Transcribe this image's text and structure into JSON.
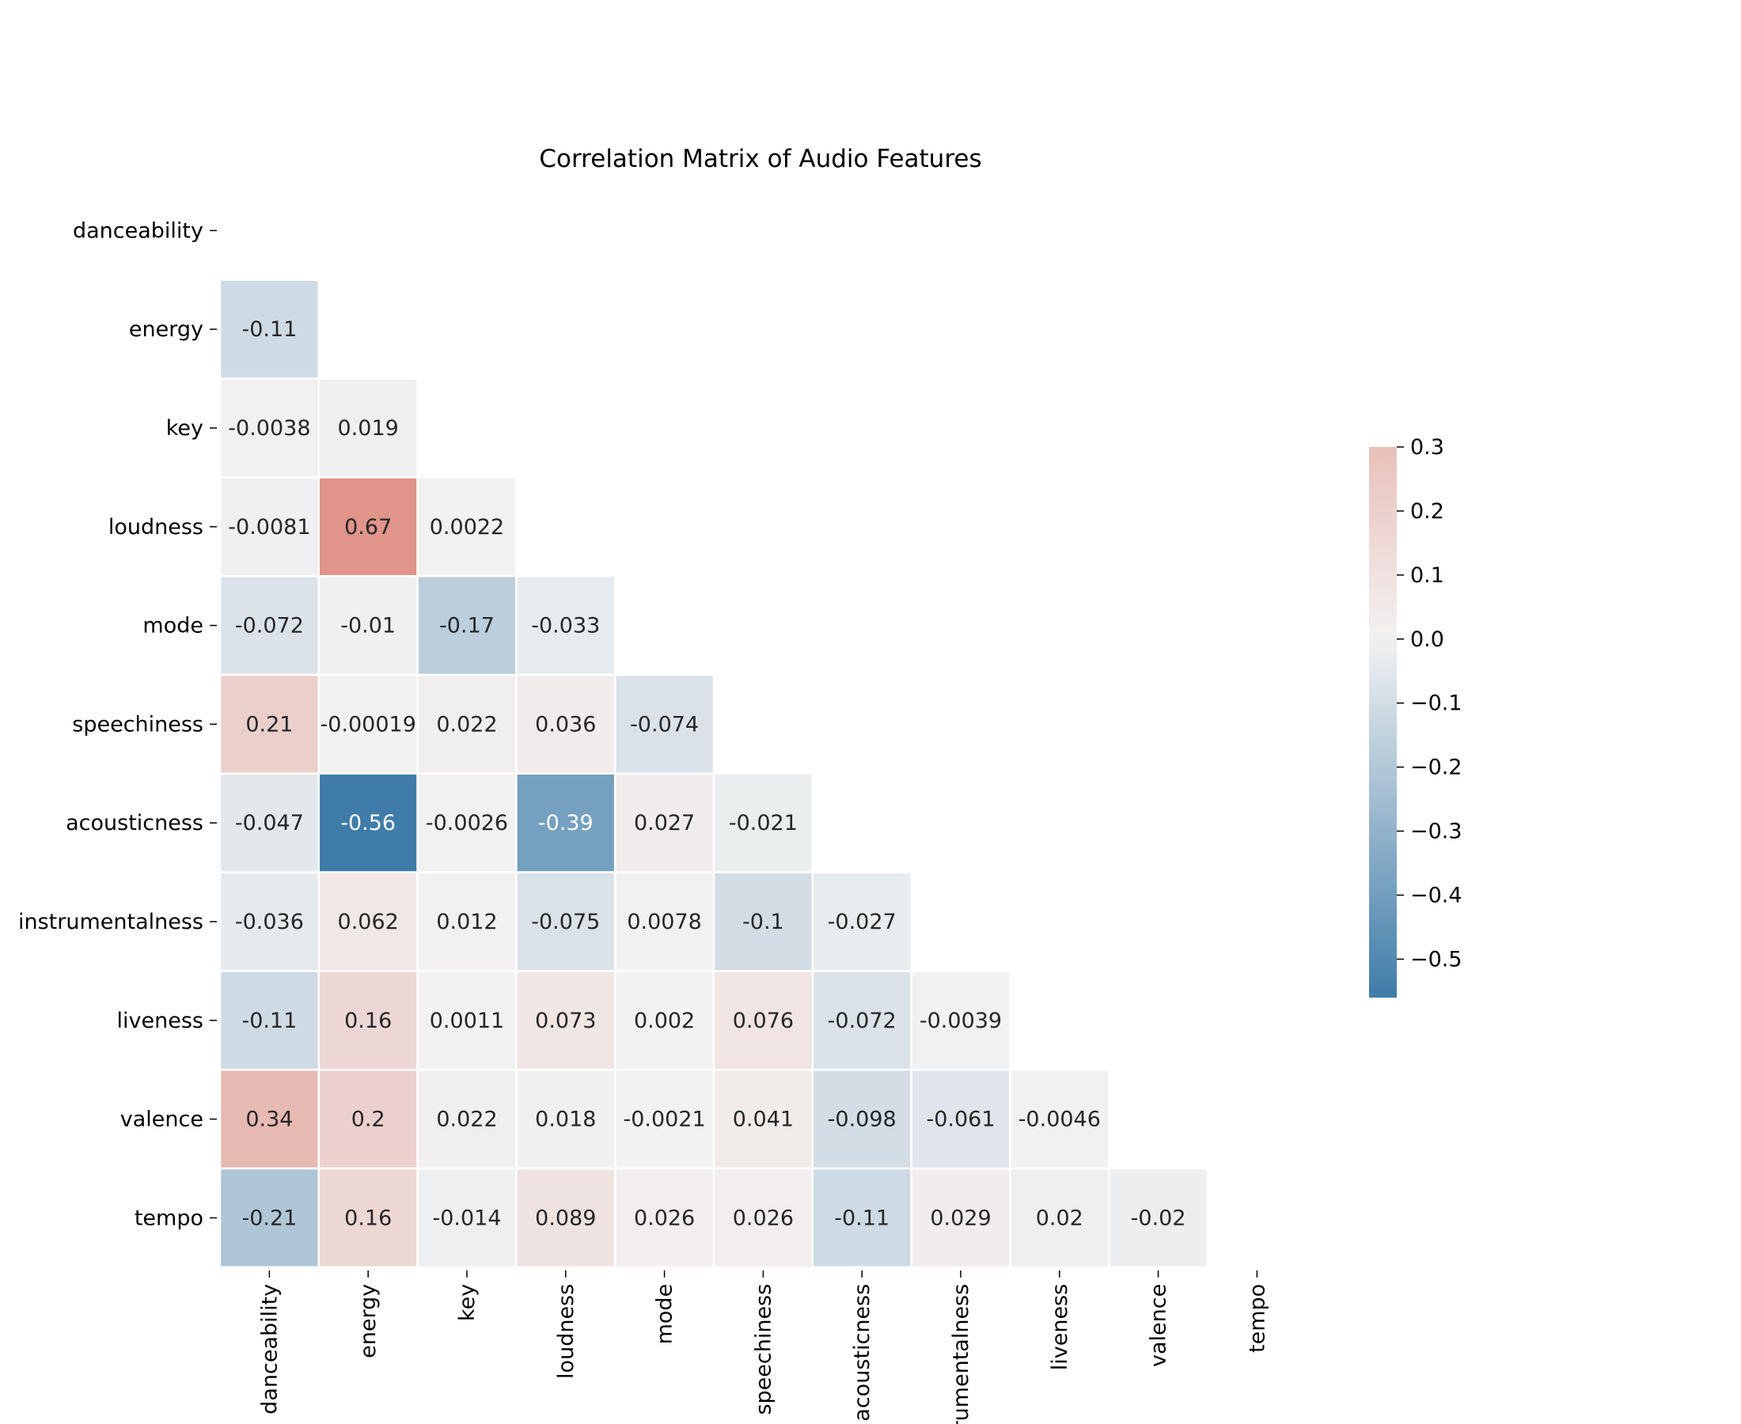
{
  "chart_data": {
    "type": "heatmap",
    "title": "Correlation Matrix of Audio Features",
    "features": [
      "danceability",
      "energy",
      "key",
      "loudness",
      "mode",
      "speechiness",
      "acousticness",
      "instrumentalness",
      "liveness",
      "valence",
      "tempo"
    ],
    "mask": "upper triangle including diagonal",
    "cells": [
      {
        "row": 1,
        "col": 0,
        "value": -0.11,
        "label": "-0.11"
      },
      {
        "row": 2,
        "col": 0,
        "value": -0.0038,
        "label": "-0.0038"
      },
      {
        "row": 2,
        "col": 1,
        "value": 0.019,
        "label": "0.019"
      },
      {
        "row": 3,
        "col": 0,
        "value": -0.0081,
        "label": "-0.0081"
      },
      {
        "row": 3,
        "col": 1,
        "value": 0.67,
        "label": "0.67"
      },
      {
        "row": 3,
        "col": 2,
        "value": 0.0022,
        "label": "0.0022"
      },
      {
        "row": 4,
        "col": 0,
        "value": -0.072,
        "label": "-0.072"
      },
      {
        "row": 4,
        "col": 1,
        "value": -0.01,
        "label": "-0.01"
      },
      {
        "row": 4,
        "col": 2,
        "value": -0.17,
        "label": "-0.17"
      },
      {
        "row": 4,
        "col": 3,
        "value": -0.033,
        "label": "-0.033"
      },
      {
        "row": 5,
        "col": 0,
        "value": 0.21,
        "label": "0.21"
      },
      {
        "row": 5,
        "col": 1,
        "value": -0.00019,
        "label": "-0.00019"
      },
      {
        "row": 5,
        "col": 2,
        "value": 0.022,
        "label": "0.022"
      },
      {
        "row": 5,
        "col": 3,
        "value": 0.036,
        "label": "0.036"
      },
      {
        "row": 5,
        "col": 4,
        "value": -0.074,
        "label": "-0.074"
      },
      {
        "row": 6,
        "col": 0,
        "value": -0.047,
        "label": "-0.047"
      },
      {
        "row": 6,
        "col": 1,
        "value": -0.56,
        "label": "-0.56"
      },
      {
        "row": 6,
        "col": 2,
        "value": -0.0026,
        "label": "-0.0026"
      },
      {
        "row": 6,
        "col": 3,
        "value": -0.39,
        "label": "-0.39"
      },
      {
        "row": 6,
        "col": 4,
        "value": 0.027,
        "label": "0.027"
      },
      {
        "row": 6,
        "col": 5,
        "value": -0.021,
        "label": "-0.021"
      },
      {
        "row": 7,
        "col": 0,
        "value": -0.036,
        "label": "-0.036"
      },
      {
        "row": 7,
        "col": 1,
        "value": 0.062,
        "label": "0.062"
      },
      {
        "row": 7,
        "col": 2,
        "value": 0.012,
        "label": "0.012"
      },
      {
        "row": 7,
        "col": 3,
        "value": -0.075,
        "label": "-0.075"
      },
      {
        "row": 7,
        "col": 4,
        "value": 0.0078,
        "label": "0.0078"
      },
      {
        "row": 7,
        "col": 5,
        "value": -0.1,
        "label": "-0.1"
      },
      {
        "row": 7,
        "col": 6,
        "value": -0.027,
        "label": "-0.027"
      },
      {
        "row": 8,
        "col": 0,
        "value": -0.11,
        "label": "-0.11"
      },
      {
        "row": 8,
        "col": 1,
        "value": 0.16,
        "label": "0.16"
      },
      {
        "row": 8,
        "col": 2,
        "value": 0.0011,
        "label": "0.0011"
      },
      {
        "row": 8,
        "col": 3,
        "value": 0.073,
        "label": "0.073"
      },
      {
        "row": 8,
        "col": 4,
        "value": 0.002,
        "label": "0.002"
      },
      {
        "row": 8,
        "col": 5,
        "value": 0.076,
        "label": "0.076"
      },
      {
        "row": 8,
        "col": 6,
        "value": -0.072,
        "label": "-0.072"
      },
      {
        "row": 8,
        "col": 7,
        "value": -0.0039,
        "label": "-0.0039"
      },
      {
        "row": 9,
        "col": 0,
        "value": 0.34,
        "label": "0.34"
      },
      {
        "row": 9,
        "col": 1,
        "value": 0.2,
        "label": "0.2"
      },
      {
        "row": 9,
        "col": 2,
        "value": 0.022,
        "label": "0.022"
      },
      {
        "row": 9,
        "col": 3,
        "value": 0.018,
        "label": "0.018"
      },
      {
        "row": 9,
        "col": 4,
        "value": -0.0021,
        "label": "-0.0021"
      },
      {
        "row": 9,
        "col": 5,
        "value": 0.041,
        "label": "0.041"
      },
      {
        "row": 9,
        "col": 6,
        "value": -0.098,
        "label": "-0.098"
      },
      {
        "row": 9,
        "col": 7,
        "value": -0.061,
        "label": "-0.061"
      },
      {
        "row": 9,
        "col": 8,
        "value": -0.0046,
        "label": "-0.0046"
      },
      {
        "row": 10,
        "col": 0,
        "value": -0.21,
        "label": "-0.21"
      },
      {
        "row": 10,
        "col": 1,
        "value": 0.16,
        "label": "0.16"
      },
      {
        "row": 10,
        "col": 2,
        "value": -0.014,
        "label": "-0.014"
      },
      {
        "row": 10,
        "col": 3,
        "value": 0.089,
        "label": "0.089"
      },
      {
        "row": 10,
        "col": 4,
        "value": 0.026,
        "label": "0.026"
      },
      {
        "row": 10,
        "col": 5,
        "value": 0.026,
        "label": "0.026"
      },
      {
        "row": 10,
        "col": 6,
        "value": -0.11,
        "label": "-0.11"
      },
      {
        "row": 10,
        "col": 7,
        "value": 0.029,
        "label": "0.029"
      },
      {
        "row": 10,
        "col": 8,
        "value": 0.02,
        "label": "0.02"
      },
      {
        "row": 10,
        "col": 9,
        "value": -0.02,
        "label": "-0.02"
      }
    ],
    "colorbar": {
      "vmin": -0.56,
      "vmax": 0.3,
      "ticks": [
        0.3,
        0.2,
        0.1,
        0.0,
        -0.1,
        -0.2,
        -0.3,
        -0.4,
        -0.5
      ],
      "tick_labels": [
        "0.3",
        "0.2",
        "0.1",
        "0.0",
        "−0.1",
        "−0.2",
        "−0.3",
        "−0.4",
        "−0.5"
      ],
      "colors": {
        "negative": "#3f7ca9",
        "neutral": "#f2f2f2",
        "positive": "#e0948a"
      }
    },
    "grid": false
  }
}
